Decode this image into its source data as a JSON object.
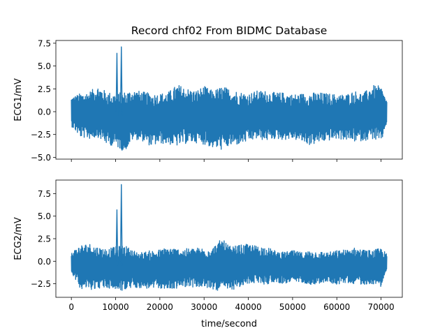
{
  "chart_data": {
    "type": "line",
    "title": "Record chf02 From BIDMC Database",
    "xlabel": "time/second",
    "line_color": "#1f77b4",
    "xlim": [
      -3500,
      74800
    ],
    "x_ticks": [
      0,
      10000,
      20000,
      30000,
      40000,
      50000,
      60000,
      70000
    ],
    "x_tick_labels": [
      "0",
      "10000",
      "20000",
      "30000",
      "40000",
      "50000",
      "60000",
      "70000"
    ],
    "x_range": [
      0,
      71300
    ],
    "grid": false,
    "panels": [
      {
        "ylabel": "ECG1/mV",
        "ylim": [
          -5.2,
          7.8
        ],
        "y_ticks": [
          -5.0,
          -2.5,
          0.0,
          2.5,
          5.0,
          7.5
        ],
        "y_tick_labels": [
          "−5.0",
          "−2.5",
          "0.0",
          "2.5",
          "5.0",
          "7.5"
        ],
        "show_x_tick_labels": false,
        "series": {
          "x_envelope": [
            0,
            2000,
            4000,
            6000,
            8000,
            10000,
            12000,
            14000,
            16000,
            18000,
            20000,
            22000,
            24000,
            26000,
            28000,
            30000,
            32000,
            34000,
            36000,
            38000,
            40000,
            42000,
            44000,
            46000,
            48000,
            50000,
            52000,
            54000,
            56000,
            58000,
            60000,
            62000,
            64000,
            66000,
            68000,
            70000,
            71300
          ],
          "upper": [
            1.6,
            2.0,
            2.2,
            2.8,
            2.2,
            2.0,
            2.2,
            2.4,
            2.2,
            2.0,
            2.0,
            2.2,
            3.0,
            2.6,
            2.3,
            2.8,
            2.3,
            2.8,
            2.5,
            2.2,
            2.0,
            2.3,
            2.3,
            2.1,
            2.1,
            1.9,
            2.0,
            2.1,
            2.1,
            2.0,
            1.9,
            1.9,
            2.3,
            2.0,
            2.9,
            2.8,
            1.2
          ],
          "lower": [
            -1.6,
            -2.8,
            -3.0,
            -2.8,
            -3.6,
            -3.8,
            -4.4,
            -3.0,
            -3.2,
            -3.8,
            -3.5,
            -3.6,
            -3.8,
            -3.5,
            -3.4,
            -3.6,
            -4.0,
            -4.2,
            -3.8,
            -3.6,
            -3.3,
            -3.0,
            -3.2,
            -3.0,
            -3.1,
            -3.0,
            -3.3,
            -3.7,
            -3.4,
            -3.2,
            -3.0,
            -3.1,
            -3.3,
            -3.2,
            -3.0,
            -3.5,
            -1.2
          ],
          "spikes": [
            {
              "x": 10300,
              "y": 6.4
            },
            {
              "x": 11300,
              "y": 7.1
            }
          ]
        }
      },
      {
        "ylabel": "ECG2/mV",
        "ylim": [
          -4.0,
          9.0
        ],
        "y_ticks": [
          -2.5,
          0.0,
          2.5,
          5.0,
          7.5
        ],
        "y_tick_labels": [
          "−2.5",
          "0.0",
          "2.5",
          "5.0",
          "7.5"
        ],
        "show_x_tick_labels": true,
        "series": {
          "x_envelope": [
            0,
            2000,
            4000,
            6000,
            8000,
            10000,
            12000,
            14000,
            16000,
            18000,
            20000,
            22000,
            24000,
            26000,
            28000,
            30000,
            32000,
            34000,
            36000,
            38000,
            40000,
            42000,
            44000,
            46000,
            48000,
            50000,
            52000,
            54000,
            56000,
            58000,
            60000,
            62000,
            64000,
            66000,
            68000,
            70000,
            71300
          ],
          "upper": [
            1.0,
            1.8,
            2.0,
            1.6,
            1.4,
            1.6,
            1.8,
            1.2,
            1.0,
            1.2,
            1.3,
            1.6,
            1.4,
            1.4,
            1.5,
            1.5,
            1.6,
            2.5,
            1.6,
            1.8,
            1.9,
            1.7,
            1.6,
            1.2,
            1.0,
            1.2,
            1.0,
            1.2,
            1.1,
            1.0,
            1.2,
            1.3,
            1.5,
            1.3,
            1.2,
            1.5,
            0.8
          ],
          "lower": [
            -1.2,
            -3.0,
            -3.2,
            -3.0,
            -3.0,
            -3.2,
            -3.3,
            -2.9,
            -3.0,
            -3.1,
            -3.0,
            -3.2,
            -3.0,
            -2.8,
            -2.9,
            -3.0,
            -3.1,
            -3.4,
            -3.2,
            -3.0,
            -2.5,
            -2.4,
            -2.6,
            -2.3,
            -2.5,
            -2.4,
            -2.3,
            -2.6,
            -2.5,
            -2.3,
            -2.6,
            -2.4,
            -2.5,
            -2.6,
            -2.5,
            -2.8,
            -1.0
          ],
          "spikes": [
            {
              "x": 10300,
              "y": 5.7
            },
            {
              "x": 11300,
              "y": 8.5
            }
          ]
        }
      }
    ]
  }
}
